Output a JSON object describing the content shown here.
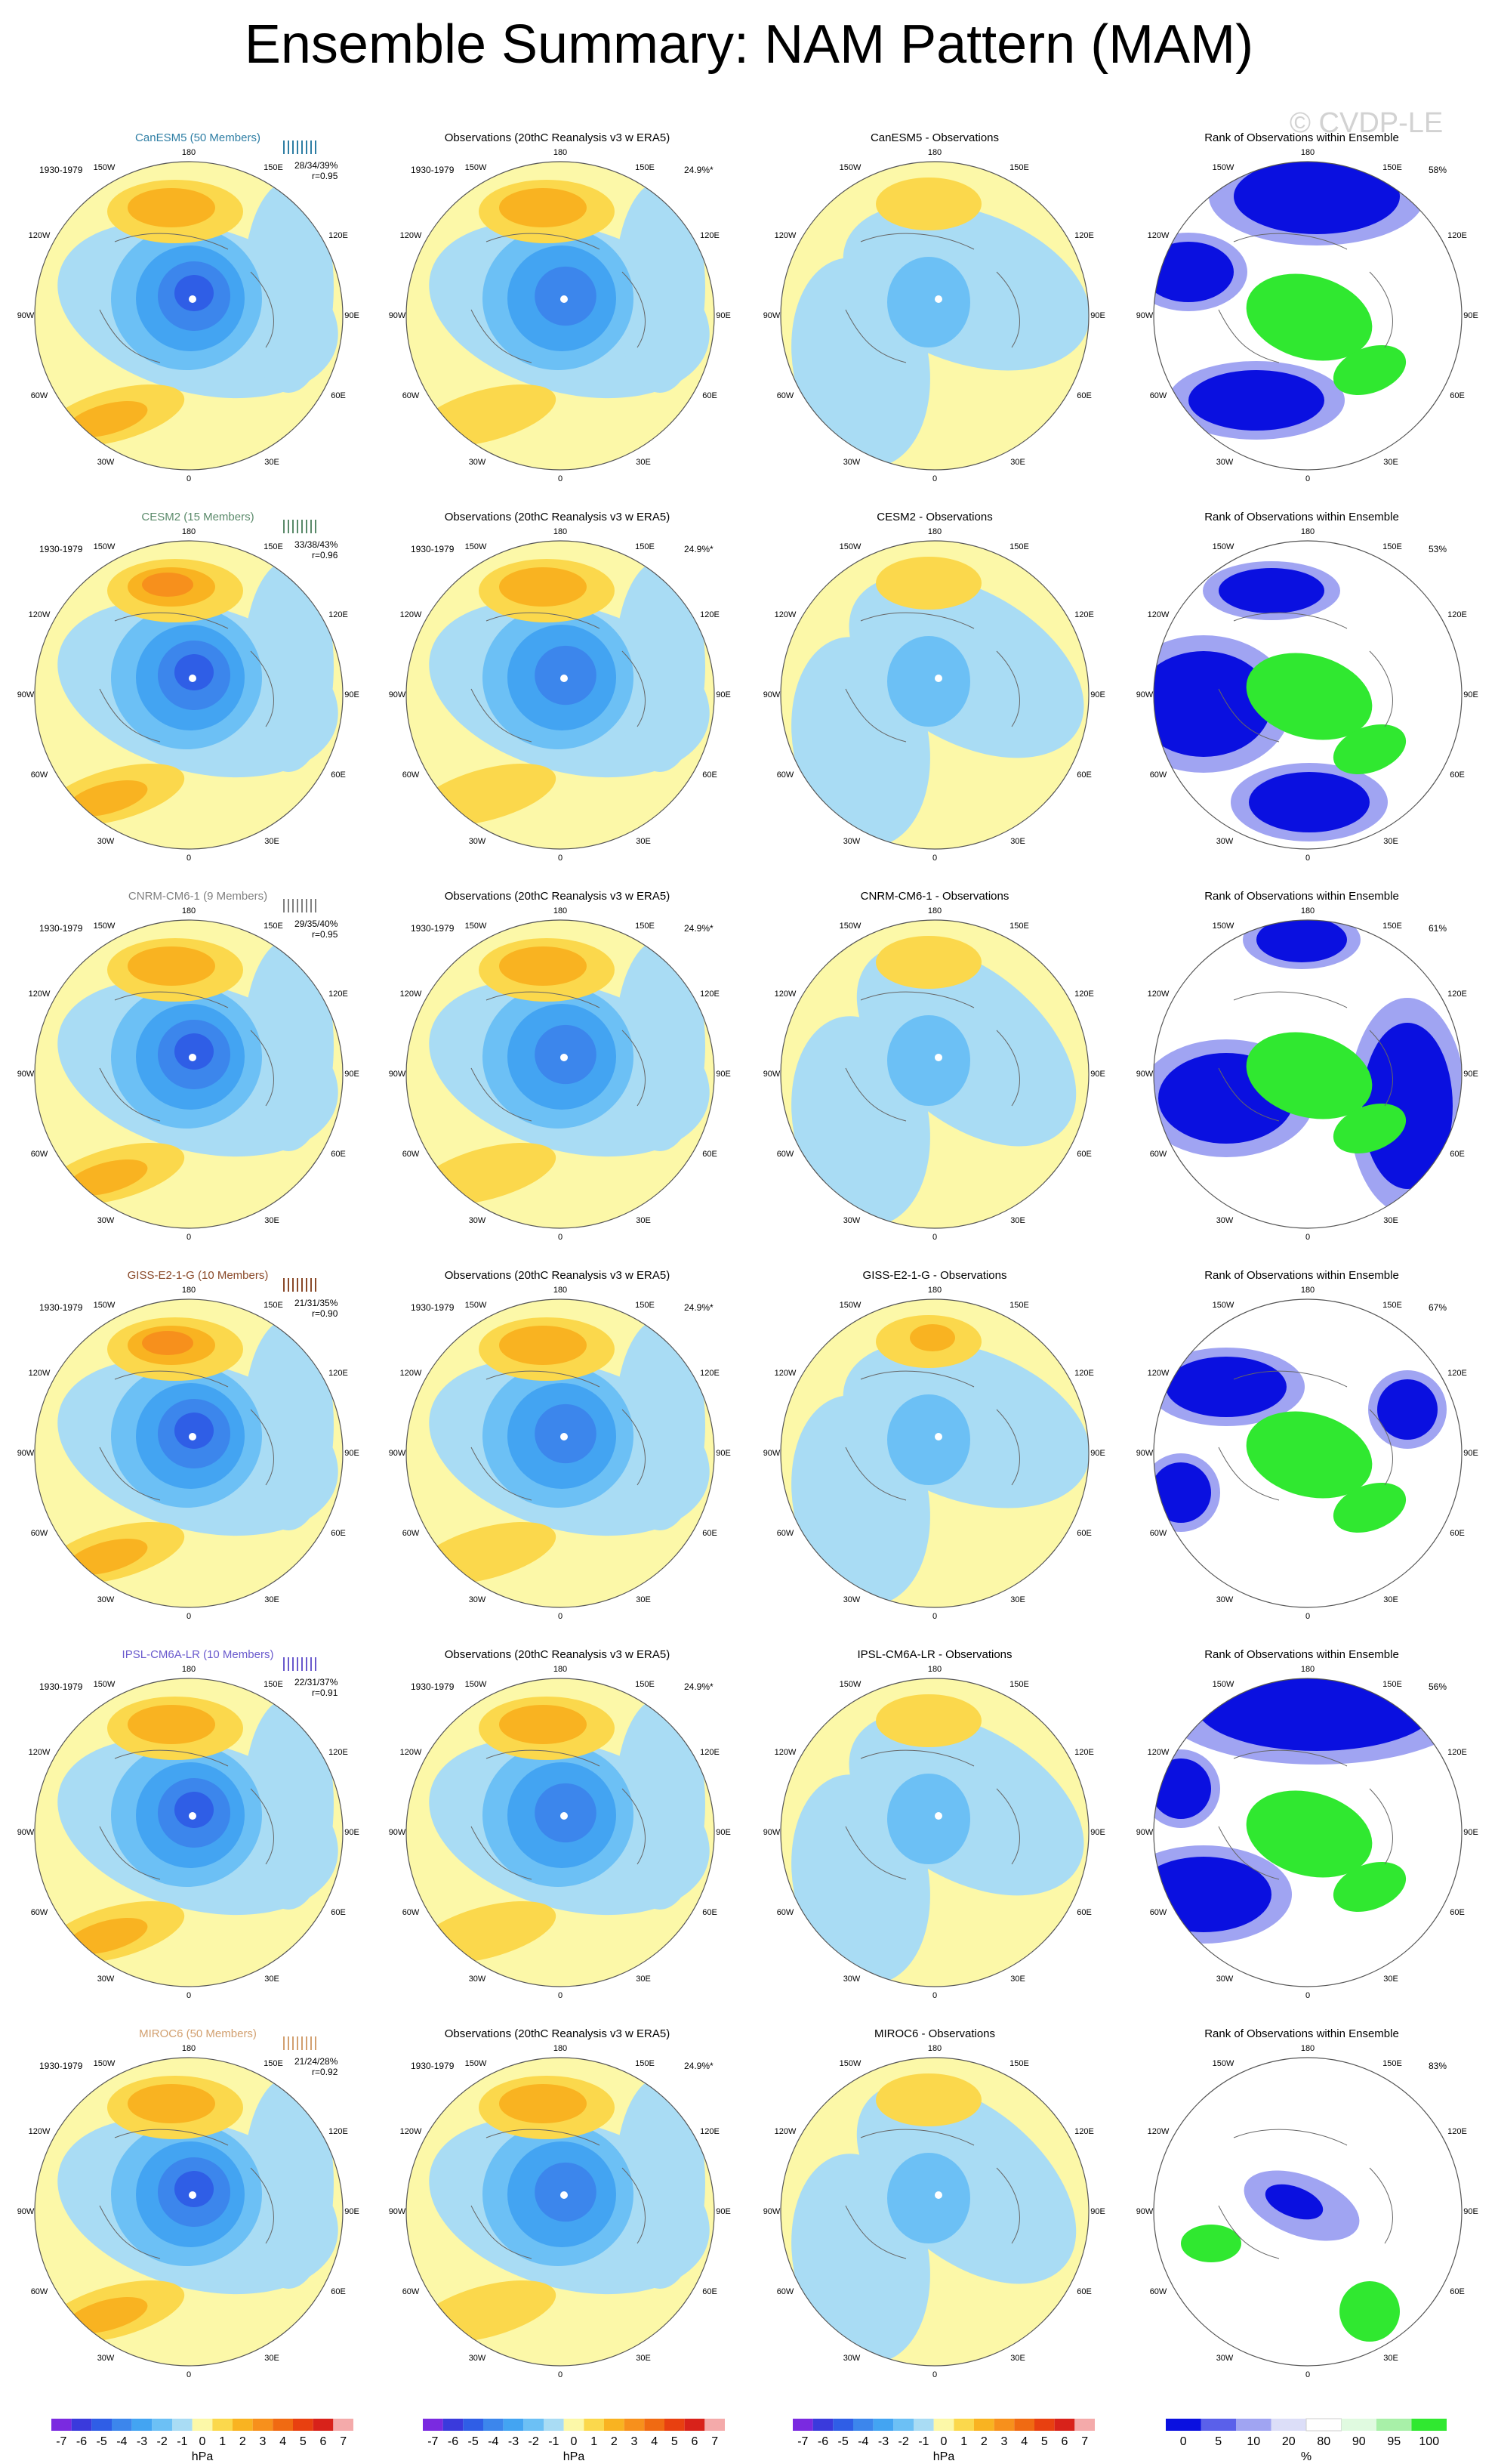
{
  "title": "Ensemble Summary: NAM Pattern (MAM)",
  "watermark": "© CVDP-LE",
  "period": "1930-1979",
  "obs_title": "Observations (20thC Reanalysis v3 w ERA5)",
  "obs_pct": "24.9%*",
  "rank_title": "Rank of Observations within Ensemble",
  "lon_labels": {
    "180": "180",
    "150w": "150W",
    "150e": "150E",
    "120w": "120W",
    "120e": "120E",
    "90w": "90W",
    "90e": "90E",
    "60w": "60W",
    "60e": "60E",
    "30w": "30W",
    "30e": "30E",
    "0": "0"
  },
  "models": [
    {
      "name": "CanESM5 (50 Members)",
      "short": "CanESM5",
      "color": "#2e7ea4",
      "pcts": "28/34/39%",
      "r": "r=0.95",
      "diff_title": "CanESM5 - Observations",
      "rank_pct": "58%"
    },
    {
      "name": "CESM2 (15 Members)",
      "short": "CESM2",
      "color": "#5a8a6a",
      "pcts": "33/38/43%",
      "r": "r=0.96",
      "diff_title": "CESM2 - Observations",
      "rank_pct": "53%"
    },
    {
      "name": "CNRM-CM6-1 (9 Members)",
      "short": "CNRM-CM6-1",
      "color": "#808080",
      "pcts": "29/35/40%",
      "r": "r=0.95",
      "diff_title": "CNRM-CM6-1 - Observations",
      "rank_pct": "61%"
    },
    {
      "name": "GISS-E2-1-G (10 Members)",
      "short": "GISS-E2-1-G",
      "color": "#8a4a2a",
      "pcts": "21/31/35%",
      "r": "r=0.90",
      "diff_title": "GISS-E2-1-G - Observations",
      "rank_pct": "67%"
    },
    {
      "name": "IPSL-CM6A-LR (10 Members)",
      "short": "IPSL-CM6A-LR",
      "color": "#6a5acd",
      "pcts": "22/31/37%",
      "r": "r=0.91",
      "diff_title": "IPSL-CM6A-LR - Observations",
      "rank_pct": "56%"
    },
    {
      "name": "MIROC6 (50 Members)",
      "short": "MIROC6",
      "color": "#d2a070",
      "pcts": "21/24/28%",
      "r": "r=0.92",
      "diff_title": "MIROC6 - Observations",
      "rank_pct": "83%"
    }
  ],
  "colorbar_hpa": {
    "unit": "hPa",
    "ticks": [
      "-7",
      "-6",
      "-5",
      "-4",
      "-3",
      "-2",
      "-1",
      "0",
      "1",
      "2",
      "3",
      "4",
      "5",
      "6",
      "7"
    ],
    "colors": [
      "#7a2ae0",
      "#3a3adc",
      "#2f5ee6",
      "#3c86ec",
      "#43a4f2",
      "#6cc0f5",
      "#a9dcf4",
      "#fcf8a8",
      "#fbd84c",
      "#f9b321",
      "#f7901c",
      "#f06a12",
      "#e84010",
      "#d8221a",
      "#f4aaaa"
    ]
  },
  "colorbar_rank": {
    "unit": "%",
    "ticks": [
      "0",
      "5",
      "10",
      "20",
      "80",
      "90",
      "95",
      "100"
    ],
    "colors": [
      "#0a10e0",
      "#5a60ea",
      "#a0a4f2",
      "#dcdef8",
      "#ffffff",
      "#e0fae0",
      "#a8f0a8",
      "#30e830"
    ]
  },
  "colors": {
    "yellow": "#fcf8a8",
    "lightblue": "#a9dcf4",
    "blue1": "#6cc0f5",
    "blue2": "#43a4f2",
    "blue3": "#3c86ec",
    "blue4": "#2f5ee6",
    "orange1": "#fbd84c",
    "orange2": "#f9b321",
    "orange3": "#f7901c",
    "orange4": "#f06a12",
    "rank_blue": "#0a10e0",
    "rank_lightblue": "#a0a4f2",
    "rank_green": "#30e830"
  }
}
